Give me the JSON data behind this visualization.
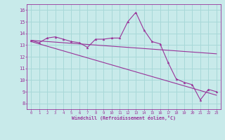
{
  "x": [
    0,
    1,
    2,
    3,
    4,
    5,
    6,
    7,
    8,
    9,
    10,
    11,
    12,
    13,
    14,
    15,
    16,
    17,
    18,
    19,
    20,
    21,
    22,
    23
  ],
  "y_main": [
    13.4,
    13.2,
    13.6,
    13.7,
    13.5,
    13.3,
    13.2,
    12.8,
    13.5,
    13.5,
    13.6,
    13.6,
    15.0,
    15.8,
    14.3,
    13.3,
    13.1,
    11.5,
    10.1,
    9.8,
    9.6,
    8.3,
    9.2,
    9.0
  ],
  "y_line1": [
    13.4,
    13.35,
    13.3,
    13.25,
    13.2,
    13.15,
    13.1,
    13.05,
    13.0,
    12.95,
    12.9,
    12.85,
    12.8,
    12.75,
    12.7,
    12.65,
    12.6,
    12.55,
    12.5,
    12.45,
    12.4,
    12.35,
    12.3,
    12.25
  ],
  "y_line2": [
    13.3,
    13.1,
    12.9,
    12.7,
    12.5,
    12.3,
    12.1,
    11.9,
    11.7,
    11.5,
    11.3,
    11.1,
    10.9,
    10.7,
    10.5,
    10.3,
    10.1,
    9.9,
    9.7,
    9.5,
    9.3,
    9.1,
    8.9,
    8.7
  ],
  "color": "#993399",
  "bg_color": "#c8eaea",
  "grid_color": "#a8d8d8",
  "xlabel": "Windchill (Refroidissement éolien,°C)",
  "xlim": [
    -0.5,
    23.5
  ],
  "ylim": [
    7.5,
    16.5
  ],
  "yticks": [
    8,
    9,
    10,
    11,
    12,
    13,
    14,
    15,
    16
  ],
  "xticks": [
    0,
    1,
    2,
    3,
    4,
    5,
    6,
    7,
    8,
    9,
    10,
    11,
    12,
    13,
    14,
    15,
    16,
    17,
    18,
    19,
    20,
    21,
    22,
    23
  ]
}
